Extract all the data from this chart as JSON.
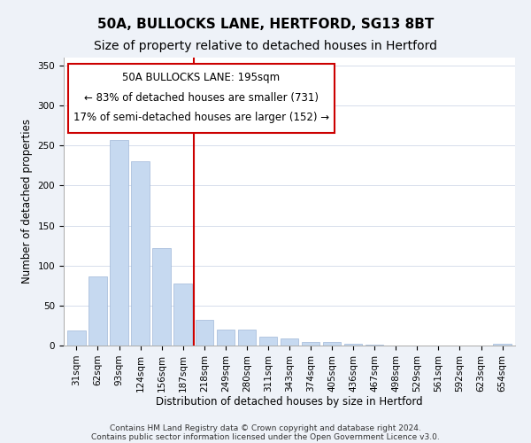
{
  "title": "50A, BULLOCKS LANE, HERTFORD, SG13 8BT",
  "subtitle": "Size of property relative to detached houses in Hertford",
  "xlabel": "Distribution of detached houses by size in Hertford",
  "ylabel": "Number of detached properties",
  "bar_labels": [
    "31sqm",
    "62sqm",
    "93sqm",
    "124sqm",
    "156sqm",
    "187sqm",
    "218sqm",
    "249sqm",
    "280sqm",
    "311sqm",
    "343sqm",
    "374sqm",
    "405sqm",
    "436sqm",
    "467sqm",
    "498sqm",
    "529sqm",
    "561sqm",
    "592sqm",
    "623sqm",
    "654sqm"
  ],
  "bar_values": [
    19,
    86,
    257,
    230,
    122,
    77,
    32,
    20,
    20,
    11,
    9,
    4,
    4,
    2,
    1,
    0,
    0,
    0,
    0,
    0,
    2
  ],
  "bar_color": "#c6d9f0",
  "bar_edge_color": "#a0b8d8",
  "vline_x": 5.5,
  "vline_color": "#cc0000",
  "annotation_title": "50A BULLOCKS LANE: 195sqm",
  "annotation_line1": "← 83% of detached houses are smaller (731)",
  "annotation_line2": "17% of semi-detached houses are larger (152) →",
  "annotation_box_color": "#ffffff",
  "annotation_box_edge": "#cc0000",
  "ylim": [
    0,
    360
  ],
  "yticks": [
    0,
    50,
    100,
    150,
    200,
    250,
    300,
    350
  ],
  "footer1": "Contains HM Land Registry data © Crown copyright and database right 2024.",
  "footer2": "Contains public sector information licensed under the Open Government Licence v3.0.",
  "bg_color": "#eef2f8",
  "plot_bg_color": "#ffffff",
  "title_fontsize": 11,
  "subtitle_fontsize": 10,
  "axis_label_fontsize": 8.5,
  "tick_fontsize": 7.5,
  "footer_fontsize": 6.5,
  "annotation_fontsize": 8.5
}
